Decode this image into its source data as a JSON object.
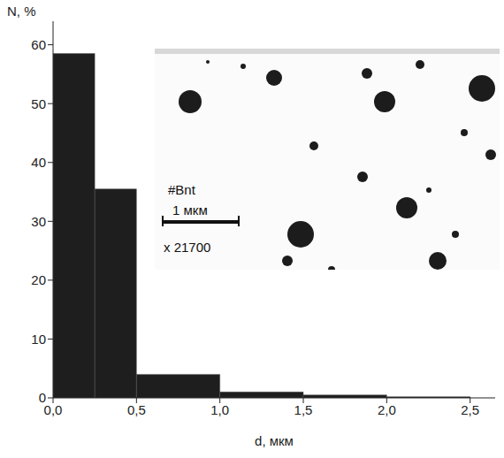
{
  "chart_data": {
    "type": "histogram",
    "bins": [
      0,
      0.25,
      0.5,
      1.0,
      1.5,
      2.0,
      2.5
    ],
    "values": [
      58.5,
      35.5,
      4,
      1,
      0.5,
      0.2
    ],
    "color": "#1e1e1e",
    "xlabel": "d, мкм",
    "ylabel": "N, %",
    "xlim": [
      0,
      2.65
    ],
    "ylim": [
      0,
      64
    ],
    "xticks": [
      {
        "value": 0,
        "label": "0,0"
      },
      {
        "value": 0.5,
        "label": "0,5"
      },
      {
        "value": 1.0,
        "label": "1,0"
      },
      {
        "value": 1.5,
        "label": "1,5"
      },
      {
        "value": 2.0,
        "label": "2,0"
      },
      {
        "value": 2.5,
        "label": "2,5"
      }
    ],
    "yticks": [
      0,
      10,
      20,
      30,
      40,
      50,
      60
    ],
    "annotations": [
      "#Bnt",
      "1 мкм",
      "x 21700"
    ]
  }
}
